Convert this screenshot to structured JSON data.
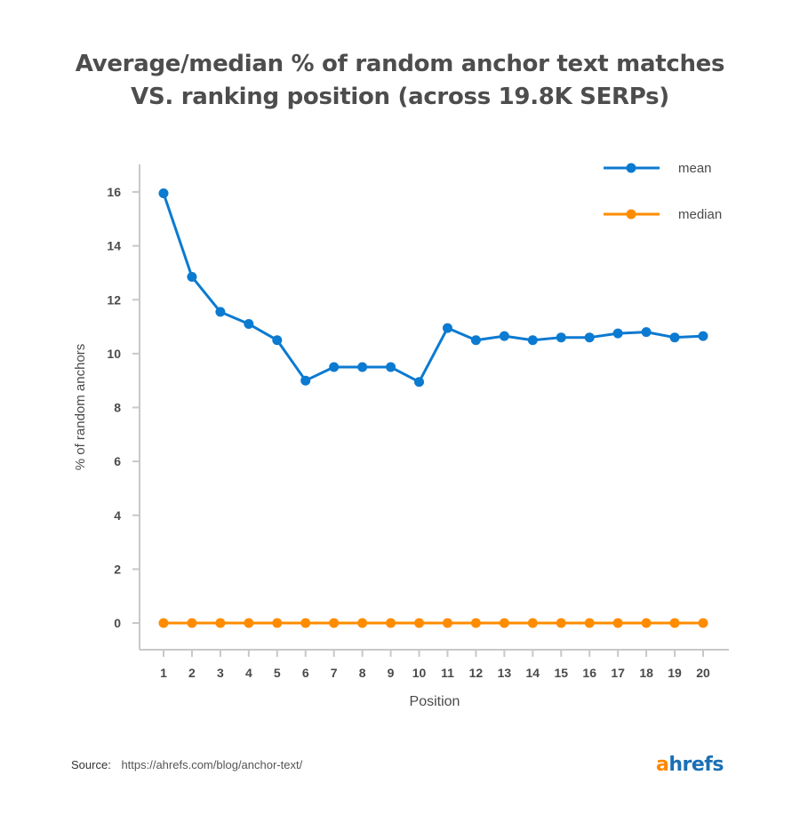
{
  "title_lines": [
    "Average/median % of random anchor text matches",
    "VS. ranking position (across 19.8K SERPs)"
  ],
  "source": {
    "label": "Source:",
    "url": "https://ahrefs.com/blog/anchor-text/"
  },
  "logo": {
    "first": "a",
    "rest": "hrefs"
  },
  "colors": {
    "mean": "#0b7ad1",
    "median": "#ff8c00",
    "axis": "#c8c8c8",
    "text": "#4a4a4a"
  },
  "chart_data": {
    "type": "line",
    "title": "Average/median % of random anchor text matches VS. ranking position (across 19.8K SERPs)",
    "xlabel": "Position",
    "ylabel": "% of random anchors",
    "categories": [
      "1",
      "2",
      "3",
      "4",
      "5",
      "6",
      "7",
      "8",
      "9",
      "10",
      "11",
      "12",
      "13",
      "14",
      "15",
      "16",
      "17",
      "18",
      "19",
      "20"
    ],
    "yticks": [
      0,
      2,
      4,
      6,
      8,
      10,
      12,
      14,
      16
    ],
    "ylim": [
      -1,
      17
    ],
    "grid": false,
    "legend_position": "top-right",
    "series": [
      {
        "name": "mean",
        "values": [
          15.95,
          12.85,
          11.55,
          11.1,
          10.5,
          9.0,
          9.5,
          9.5,
          9.5,
          8.95,
          10.95,
          10.5,
          10.65,
          10.5,
          10.6,
          10.6,
          10.75,
          10.8,
          10.6,
          10.65
        ]
      },
      {
        "name": "median",
        "values": [
          0,
          0,
          0,
          0,
          0,
          0,
          0,
          0,
          0,
          0,
          0,
          0,
          0,
          0,
          0,
          0,
          0,
          0,
          0,
          0
        ]
      }
    ]
  }
}
